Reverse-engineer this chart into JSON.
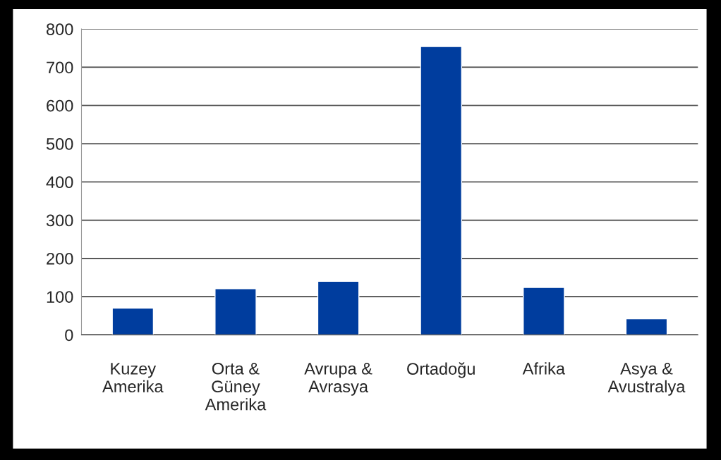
{
  "chart_data": {
    "type": "bar",
    "categories": [
      "Kuzey\nAmerika",
      "Orta &\nGüney\nAmerika",
      "Avrupa &\nAvrasya",
      "Ortadoğu",
      "Afrika",
      "Asya &\nAvustralya"
    ],
    "values": [
      70,
      121,
      140,
      754,
      124,
      42
    ],
    "color": "#003d9e",
    "ylim": [
      0,
      800
    ],
    "yticks": [
      0,
      100,
      200,
      300,
      400,
      500,
      600,
      700,
      800
    ],
    "grid": "y",
    "legend": false
  }
}
